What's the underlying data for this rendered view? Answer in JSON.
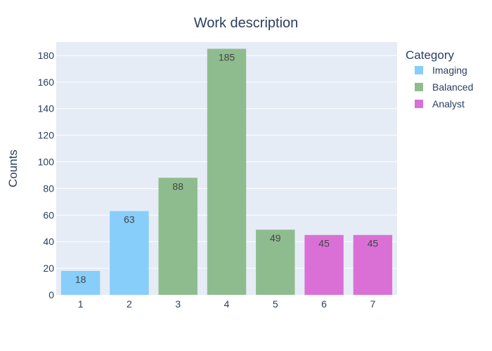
{
  "chart_data": {
    "type": "bar",
    "title": "Work description",
    "xlabel": "",
    "ylabel": "Counts",
    "ylim": [
      0,
      190
    ],
    "yticks": [
      0,
      20,
      40,
      60,
      80,
      100,
      120,
      140,
      160,
      180
    ],
    "categories": [
      "1",
      "2",
      "3",
      "4",
      "5",
      "6",
      "7"
    ],
    "values": [
      18,
      63,
      88,
      185,
      49,
      45,
      45
    ],
    "bar_category": [
      "Imaging",
      "Imaging",
      "Balanced",
      "Balanced",
      "Balanced",
      "Analyst",
      "Analyst"
    ],
    "data_labels": [
      "18",
      "63",
      "88",
      "185",
      "49",
      "45",
      "45"
    ],
    "grid": true,
    "legend": {
      "title": "Category",
      "position": "top-right",
      "entries": [
        {
          "name": "Imaging",
          "color": "#87cefa"
        },
        {
          "name": "Balanced",
          "color": "#8fbc8f"
        },
        {
          "name": "Analyst",
          "color": "#da70d6"
        }
      ]
    },
    "colors": {
      "plot_background": "#e5ecf6",
      "gridline": "#ffffff",
      "text": "#2a3f5f"
    }
  }
}
